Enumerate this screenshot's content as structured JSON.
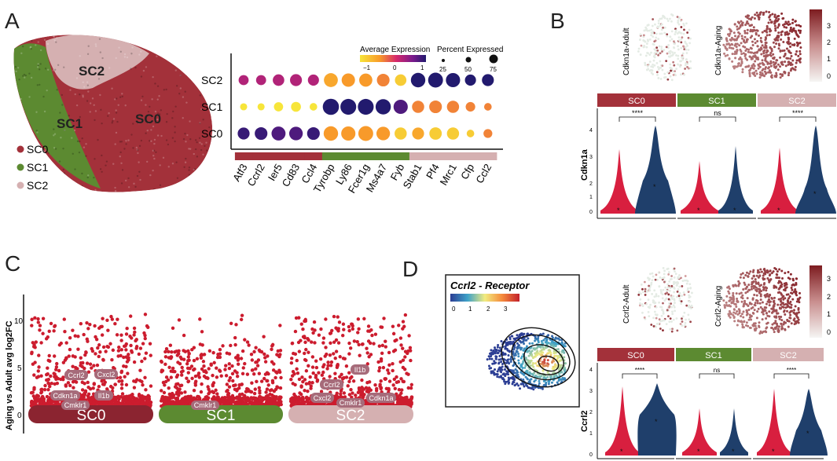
{
  "panels": {
    "a": {
      "letter": "A",
      "clusters": [
        "SC0",
        "SC1",
        "SC2"
      ]
    },
    "b": {
      "letter": "B"
    },
    "c": {
      "letter": "C"
    },
    "d": {
      "letter": "D"
    }
  },
  "colors": {
    "sc0": "#a3313a",
    "sc1": "#5c8a31",
    "sc2": "#d5b0b1",
    "adult": "#d81f3f",
    "aging": "#1f3f6b",
    "volcano": "#cc1c2e"
  },
  "umap_a": {
    "labels": [
      "SC2",
      "SC1",
      "SC0"
    ],
    "legend": [
      "SC0",
      "SC1",
      "SC2"
    ]
  },
  "dotplot": {
    "legend_expression_title": "Average Expression",
    "legend_expression_ticks": [
      "−1",
      "0",
      "1"
    ],
    "legend_percent_title": "Percent Expressed",
    "legend_percent_ticks": [
      "25",
      "50",
      "75"
    ],
    "rows": [
      "SC2",
      "SC1",
      "SC0"
    ],
    "genes": [
      "Atf3",
      "Ccrl2",
      "Ier5",
      "Cd83",
      "Ccl4",
      "Tyrobp",
      "Ly86",
      "Fcer1g",
      "Ms4a7",
      "Fyb",
      "Stab1",
      "Pf4",
      "Mrc1",
      "Cfp",
      "Ccl2"
    ],
    "gene_groups": [
      "SC0",
      "SC0",
      "SC0",
      "SC0",
      "SC0",
      "SC1",
      "SC1",
      "SC1",
      "SC1",
      "SC1",
      "SC2",
      "SC2",
      "SC2",
      "SC2",
      "SC2"
    ],
    "avg_expression": {
      "SC2": [
        0.3,
        0.3,
        0.3,
        0.3,
        0.3,
        -0.5,
        -0.4,
        -0.4,
        -0.3,
        -0.8,
        1,
        1,
        1,
        1,
        1
      ],
      "SC1": [
        -1,
        -1,
        -1,
        -1,
        -1,
        1,
        1,
        1,
        1,
        0.8,
        -0.3,
        -0.3,
        -0.3,
        -0.3,
        -0.3
      ],
      "SC0": [
        0.9,
        0.9,
        0.8,
        0.8,
        0.9,
        -0.4,
        -0.4,
        -0.4,
        -0.4,
        -0.8,
        -0.5,
        -0.8,
        -0.8,
        -0.8,
        -0.3
      ]
    },
    "pct_expressed": {
      "SC2": [
        25,
        25,
        35,
        38,
        32,
        55,
        50,
        48,
        44,
        35,
        60,
        64,
        58,
        32,
        38
      ],
      "SC1": [
        10,
        10,
        20,
        24,
        12,
        78,
        74,
        74,
        68,
        58,
        40,
        44,
        40,
        22,
        12
      ],
      "SC0": [
        38,
        44,
        56,
        52,
        44,
        60,
        58,
        64,
        52,
        40,
        38,
        42,
        40,
        12,
        18
      ]
    }
  },
  "panel_b": {
    "umap_labels": [
      "Cdkn1a-Adult",
      "Cdkn1a-Aging"
    ],
    "colorbar_ticks": [
      "3",
      "2",
      "1",
      "0"
    ],
    "strip": [
      "SC0",
      "SC1",
      "SC2"
    ],
    "ylabel": "Cdkn1a",
    "yticks": [
      "4",
      "3",
      "2",
      "1",
      "0"
    ],
    "significance": [
      "****",
      "ns",
      "****"
    ]
  },
  "panel_c": {
    "ylabel": "Aging vs Adult  avg log2FC",
    "yticks": [
      "10",
      "5",
      "0"
    ],
    "clusters": [
      "SC0",
      "SC1",
      "SC2"
    ],
    "gene_labels": {
      "SC0": [
        "Ccrl2",
        "Cxcl2",
        "Cdkn1a",
        "Il1b",
        "Cmklr1"
      ],
      "SC1": [
        "Cmklr1"
      ],
      "SC2": [
        "Il1b",
        "Ccrl2",
        "Cxcl2",
        "Cmklr1",
        "Cdkn1a"
      ]
    }
  },
  "panel_d": {
    "inset_title": "Ccrl2 - Receptor",
    "inset_ticks": [
      "0",
      "1",
      "2",
      "3"
    ],
    "umap_labels": [
      "Ccrl2-Adult",
      "Ccrl2-Aging"
    ],
    "colorbar_ticks": [
      "3",
      "2",
      "1",
      "0"
    ],
    "strip": [
      "SC0",
      "SC1",
      "SC2"
    ],
    "ylabel": "Ccrl2",
    "yticks": [
      "4",
      "3",
      "2",
      "1",
      "0"
    ],
    "significance": [
      "****",
      "ns",
      "****"
    ]
  }
}
